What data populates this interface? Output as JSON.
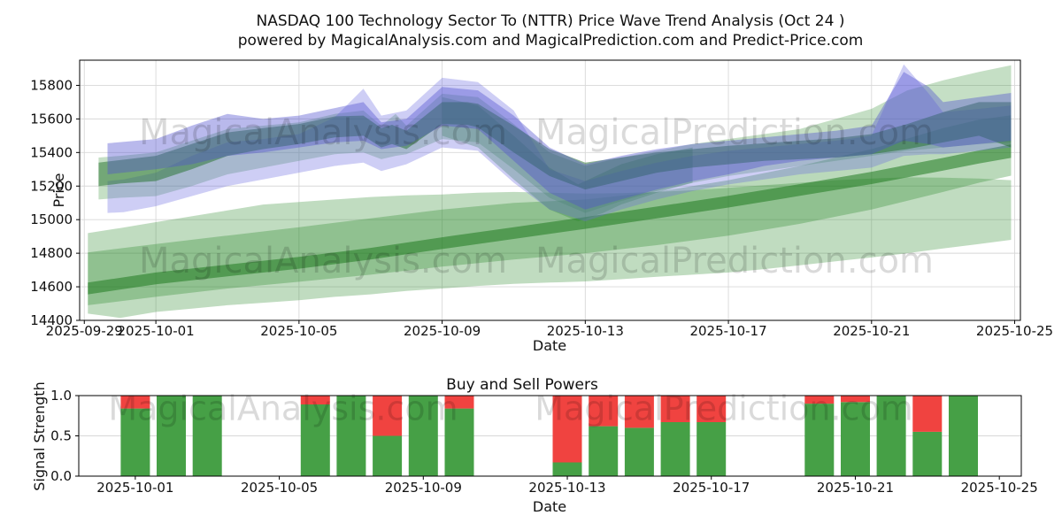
{
  "title": {
    "line1": "NASDAQ 100 Technology Sector To (NTTR) Price Wave Trend Analysis (Oct 24 )",
    "line2": "powered by MagicalAnalysis.com and MagicalPrediction.com and Predict-Price.com"
  },
  "watermarks": {
    "left": "MagicalAnalysis.com",
    "right": "MagicalPrediction.com"
  },
  "chart_data": [
    {
      "id": "price-wave-chart",
      "type": "area",
      "xlabel": "Date",
      "ylabel": "Price",
      "grid": true,
      "ylim": [
        14400,
        15950
      ],
      "xlim_days": [
        -0.13,
        26.16
      ],
      "yticks": [
        14400,
        14600,
        14800,
        15000,
        15200,
        15400,
        15600,
        15800
      ],
      "xticks": [
        {
          "day": 0,
          "label": "2025-09-29"
        },
        {
          "day": 2,
          "label": "2025-10-01"
        },
        {
          "day": 6,
          "label": "2025-10-05"
        },
        {
          "day": 10,
          "label": "2025-10-09"
        },
        {
          "day": 14,
          "label": "2025-10-13"
        },
        {
          "day": 18,
          "label": "2025-10-17"
        },
        {
          "day": 22,
          "label": "2025-10-21"
        },
        {
          "day": 26,
          "label": "2025-10-25"
        }
      ],
      "bands": [
        {
          "name": "lower-outer-band",
          "color": "#2e8b2e",
          "opacity": 0.3,
          "days": [
            0.1,
            1,
            2,
            3,
            4,
            5,
            6,
            7,
            8,
            9,
            10,
            11,
            12,
            13,
            14,
            15,
            16,
            17,
            18,
            19,
            20,
            21,
            22,
            23,
            24,
            25,
            25.9
          ],
          "top": [
            14920,
            14950,
            14985,
            15020,
            15055,
            15090,
            15105,
            15120,
            15135,
            15145,
            15150,
            15160,
            15165,
            15160,
            15155,
            15158,
            15165,
            15175,
            15190,
            15205,
            15220,
            15235,
            15245,
            15252,
            15250,
            15245,
            15235
          ],
          "bottom": [
            14440,
            14415,
            14450,
            14470,
            14490,
            14505,
            14520,
            14540,
            14555,
            14575,
            14590,
            14605,
            14618,
            14625,
            14632,
            14645,
            14660,
            14672,
            14685,
            14705,
            14728,
            14752,
            14775,
            14800,
            14828,
            14855,
            14880
          ]
        },
        {
          "name": "lower-inner-band",
          "color": "#2e8b2e",
          "opacity": 0.33,
          "days": [
            0.1,
            2,
            4,
            6,
            8,
            10,
            12,
            14,
            16,
            18,
            20,
            22,
            24,
            25,
            25.9
          ],
          "top": [
            14805,
            14855,
            14905,
            14955,
            15008,
            15060,
            15100,
            15120,
            15165,
            15235,
            15320,
            15420,
            15545,
            15595,
            15622
          ],
          "bottom": [
            14490,
            14540,
            14590,
            14630,
            14672,
            14720,
            14762,
            14800,
            14848,
            14905,
            14975,
            15060,
            15165,
            15220,
            15262
          ]
        },
        {
          "name": "trend-line-band",
          "color": "#1f7a1f",
          "opacity": 0.55,
          "days": [
            0.1,
            2,
            4,
            6,
            8,
            10,
            12,
            14,
            16,
            18,
            20,
            22,
            24,
            25,
            25.9
          ],
          "top": [
            14625,
            14685,
            14732,
            14778,
            14832,
            14895,
            14955,
            15015,
            15078,
            15142,
            15212,
            15285,
            15368,
            15412,
            15448
          ],
          "bottom": [
            14555,
            14615,
            14662,
            14708,
            14762,
            14825,
            14885,
            14945,
            15008,
            15072,
            15142,
            15212,
            15292,
            15335,
            15368
          ]
        },
        {
          "name": "upper-light-band",
          "color": "#2e8b2e",
          "opacity": 0.28,
          "days": [
            0.4,
            1,
            2,
            3,
            4,
            5,
            6,
            7,
            7.8,
            8.3,
            8.7,
            9,
            10,
            11,
            12,
            13,
            14,
            15,
            16,
            17,
            18,
            19,
            20,
            21,
            22,
            23,
            24,
            25,
            25.9
          ],
          "top": [
            15370,
            15380,
            15400,
            15470,
            15540,
            15560,
            15580,
            15630,
            15650,
            15560,
            15630,
            15560,
            15750,
            15730,
            15570,
            15400,
            15320,
            15370,
            15410,
            15450,
            15480,
            15510,
            15540,
            15600,
            15660,
            15770,
            15830,
            15880,
            15920
          ],
          "bottom": [
            15120,
            15130,
            15140,
            15200,
            15270,
            15310,
            15350,
            15390,
            15400,
            15360,
            15380,
            15390,
            15480,
            15460,
            15300,
            15130,
            15040,
            15110,
            15170,
            15220,
            15260,
            15290,
            15320,
            15350,
            15380,
            15410,
            15430,
            15450,
            15460
          ]
        },
        {
          "name": "v-wedge-band",
          "color": "#2e8b2e",
          "opacity": 0.33,
          "days": [
            10,
            11,
            12,
            13,
            13.8,
            14.5,
            15,
            16,
            17
          ],
          "top": [
            15730,
            15680,
            15500,
            15310,
            15210,
            15280,
            15330,
            15390,
            15430
          ],
          "bottom": [
            15500,
            15430,
            15240,
            15060,
            14990,
            15040,
            15090,
            15160,
            15220
          ]
        },
        {
          "name": "blue-outer-band",
          "color": "#6b6be0",
          "opacity": 0.33,
          "days": [
            0.65,
            1.1,
            2,
            3,
            4,
            5,
            6,
            7,
            7.8,
            8.3,
            9,
            10,
            11,
            12,
            13,
            14,
            15,
            16,
            17,
            18,
            19,
            20,
            21,
            22,
            22.9,
            23.6,
            24,
            25,
            25.9
          ],
          "top": [
            15230,
            15240,
            15280,
            15380,
            15460,
            15480,
            15510,
            15610,
            15780,
            15620,
            15650,
            15845,
            15820,
            15650,
            15300,
            15230,
            15290,
            15340,
            15380,
            15410,
            15430,
            15450,
            15470,
            15500,
            15925,
            15750,
            15640,
            15660,
            15680
          ],
          "bottom": [
            15040,
            15045,
            15080,
            15140,
            15200,
            15240,
            15280,
            15320,
            15340,
            15290,
            15330,
            15430,
            15410,
            15220,
            15060,
            14990,
            15060,
            15120,
            15170,
            15210,
            15240,
            15270,
            15290,
            15310,
            15380,
            15390,
            15390,
            15410,
            15430
          ]
        },
        {
          "name": "upper-crest-band",
          "color": "#22702a",
          "opacity": 0.5,
          "days": [
            0.4,
            1,
            2,
            3,
            4,
            5,
            6,
            7,
            7.8,
            8.3,
            8.6,
            9,
            10,
            10.7,
            11,
            12,
            13,
            14,
            15,
            16,
            17,
            18,
            19,
            20,
            21,
            22,
            23,
            24,
            25,
            25.9
          ],
          "top": [
            15340,
            15355,
            15380,
            15450,
            15520,
            15545,
            15570,
            15615,
            15620,
            15545,
            15565,
            15530,
            15700,
            15700,
            15690,
            15560,
            15420,
            15340,
            15370,
            15400,
            15420,
            15440,
            15455,
            15470,
            15485,
            15510,
            15570,
            15640,
            15700,
            15700
          ],
          "bottom": [
            15200,
            15215,
            15230,
            15300,
            15380,
            15420,
            15450,
            15490,
            15500,
            15430,
            15450,
            15420,
            15570,
            15565,
            15550,
            15400,
            15260,
            15180,
            15230,
            15280,
            15310,
            15330,
            15350,
            15360,
            15370,
            15390,
            15420,
            15460,
            15500,
            15430
          ]
        },
        {
          "name": "blue-inner-band",
          "color": "#5050d0",
          "opacity": 0.4,
          "days": [
            0.65,
            2,
            3,
            4,
            5,
            6,
            7,
            7.8,
            8.3,
            9,
            10,
            11,
            12,
            13,
            14,
            15,
            16,
            17,
            18,
            19,
            20,
            21,
            22,
            22.9,
            23.6,
            24,
            25,
            25.9
          ],
          "top": [
            15455,
            15480,
            15560,
            15630,
            15600,
            15620,
            15665,
            15700,
            15580,
            15600,
            15790,
            15770,
            15620,
            15430,
            15330,
            15380,
            15420,
            15450,
            15470,
            15490,
            15510,
            15530,
            15560,
            15880,
            15790,
            15700,
            15730,
            15755
          ],
          "bottom": [
            15270,
            15300,
            15330,
            15380,
            15400,
            15430,
            15460,
            15470,
            15420,
            15440,
            15560,
            15540,
            15350,
            15160,
            15060,
            15120,
            15180,
            15230,
            15270,
            15320,
            15350,
            15370,
            15390,
            15470,
            15450,
            15430,
            15450,
            15470
          ]
        }
      ]
    },
    {
      "id": "buy-sell-powers-chart",
      "type": "bar",
      "title": "Buy and Sell Powers",
      "xlabel": "Date",
      "ylabel": "Signal Strength",
      "grid": true,
      "ylim": [
        0.0,
        1.0
      ],
      "xlim_days": [
        0.43,
        26.61
      ],
      "yticks": [
        "0.0",
        "0.5",
        "1.0"
      ],
      "xticks": [
        {
          "day": 2,
          "label": "2025-10-01"
        },
        {
          "day": 6,
          "label": "2025-10-05"
        },
        {
          "day": 10,
          "label": "2025-10-09"
        },
        {
          "day": 14,
          "label": "2025-10-13"
        },
        {
          "day": 18,
          "label": "2025-10-17"
        },
        {
          "day": 22,
          "label": "2025-10-21"
        },
        {
          "day": 26,
          "label": "2025-10-25"
        }
      ],
      "colors": {
        "buy": "#46a046",
        "sell": "#f04340"
      },
      "bars": [
        {
          "date": "2025-10-01",
          "day": 2,
          "buy": 0.84,
          "sell": 0.16
        },
        {
          "date": "2025-10-02",
          "day": 3,
          "buy": 1.0,
          "sell": 0.0
        },
        {
          "date": "2025-10-03",
          "day": 4,
          "buy": 1.0,
          "sell": 0.0
        },
        {
          "date": "2025-10-06",
          "day": 7,
          "buy": 0.89,
          "sell": 0.11
        },
        {
          "date": "2025-10-07",
          "day": 8,
          "buy": 1.0,
          "sell": 0.0
        },
        {
          "date": "2025-10-08",
          "day": 9,
          "buy": 0.5,
          "sell": 0.5
        },
        {
          "date": "2025-10-09",
          "day": 10,
          "buy": 1.0,
          "sell": 0.0
        },
        {
          "date": "2025-10-10",
          "day": 11,
          "buy": 0.84,
          "sell": 0.16
        },
        {
          "date": "2025-10-13",
          "day": 14,
          "buy": 0.17,
          "sell": 0.83
        },
        {
          "date": "2025-10-14",
          "day": 15,
          "buy": 0.62,
          "sell": 0.38
        },
        {
          "date": "2025-10-15",
          "day": 16,
          "buy": 0.6,
          "sell": 0.4
        },
        {
          "date": "2025-10-16",
          "day": 17,
          "buy": 0.67,
          "sell": 0.33
        },
        {
          "date": "2025-10-17",
          "day": 18,
          "buy": 0.67,
          "sell": 0.33
        },
        {
          "date": "2025-10-20",
          "day": 21,
          "buy": 0.9,
          "sell": 0.1
        },
        {
          "date": "2025-10-21",
          "day": 22,
          "buy": 0.92,
          "sell": 0.08
        },
        {
          "date": "2025-10-22",
          "day": 23,
          "buy": 1.0,
          "sell": 0.0
        },
        {
          "date": "2025-10-23",
          "day": 24,
          "buy": 0.55,
          "sell": 0.45
        },
        {
          "date": "2025-10-24",
          "day": 25,
          "buy": 1.0,
          "sell": 0.0
        }
      ]
    }
  ]
}
